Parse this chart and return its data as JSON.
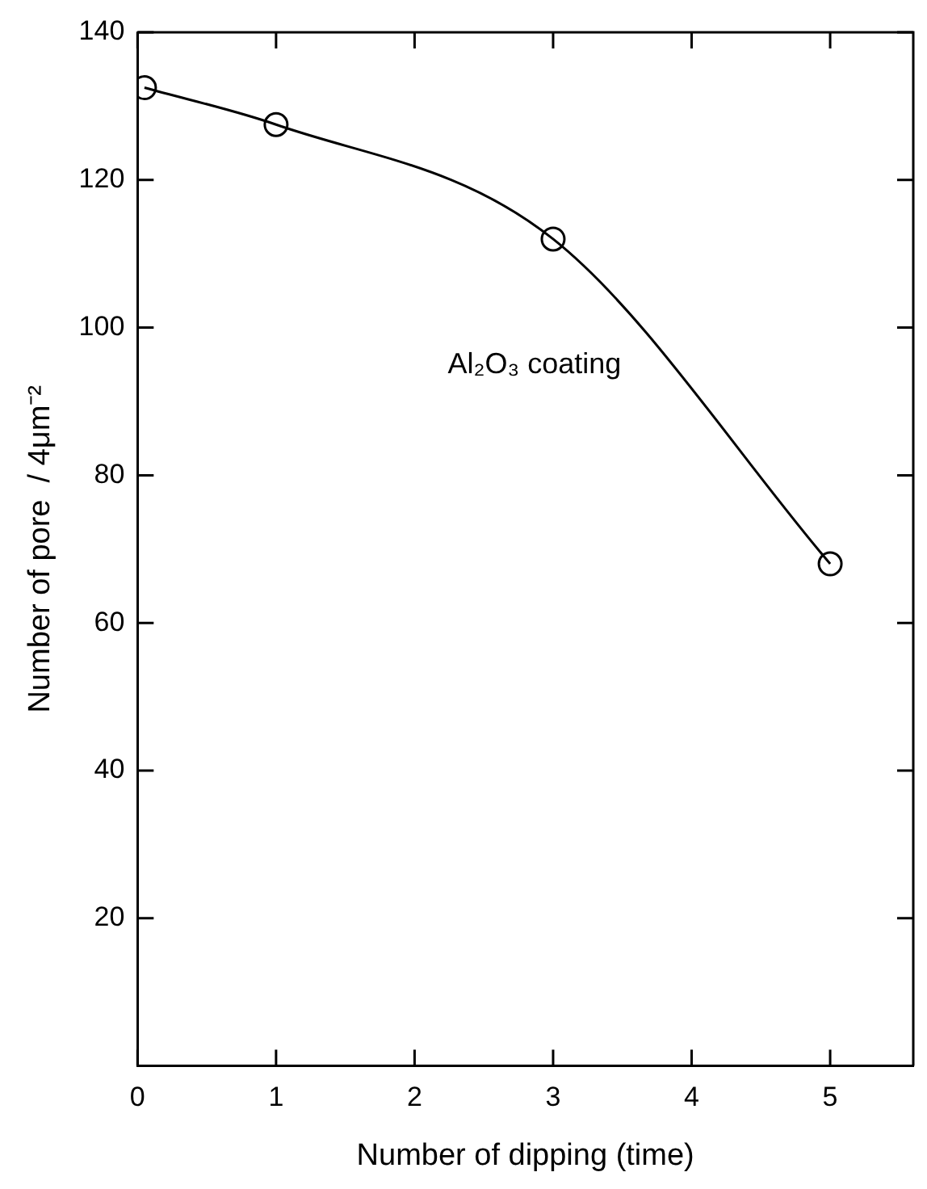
{
  "chart_data": {
    "type": "line",
    "xlabel": "Number of dipping (time)",
    "ylabel": "Number of pore  / 4μm⁻²",
    "annotations": [
      "Al₂O₃ coating"
    ],
    "x": [
      0.05,
      1,
      3,
      5
    ],
    "series": [
      {
        "color": "#000000",
        "values": [
          132.5,
          127.5,
          112,
          68
        ]
      }
    ],
    "xlim": [
      0,
      5.6
    ],
    "xticks": [
      0,
      1,
      2,
      3,
      4,
      5
    ],
    "ylim": [
      0,
      140
    ],
    "yticks": [
      20,
      40,
      60,
      80,
      100,
      120,
      140
    ],
    "marker": "circle",
    "line_style": "solid",
    "grid": false,
    "legend": false
  }
}
